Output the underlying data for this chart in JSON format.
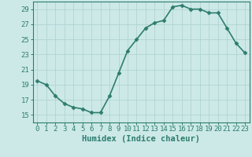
{
  "x": [
    0,
    1,
    2,
    3,
    4,
    5,
    6,
    7,
    8,
    9,
    10,
    11,
    12,
    13,
    14,
    15,
    16,
    17,
    18,
    19,
    20,
    21,
    22,
    23
  ],
  "y": [
    19.5,
    19.0,
    17.5,
    16.5,
    16.0,
    15.8,
    15.3,
    15.3,
    17.5,
    20.5,
    23.5,
    25.0,
    26.5,
    27.2,
    27.5,
    29.3,
    29.5,
    29.0,
    29.0,
    28.5,
    28.5,
    26.5,
    24.5,
    23.2
  ],
  "line_color": "#2e7d6e",
  "bg_color": "#cce9e8",
  "grid_color": "#b0d4d2",
  "xlabel": "Humidex (Indice chaleur)",
  "ylim": [
    14,
    30
  ],
  "yticks": [
    15,
    17,
    19,
    21,
    23,
    25,
    27,
    29
  ],
  "xlim": [
    -0.5,
    23.5
  ],
  "marker": "D",
  "marker_size": 2.5,
  "line_width": 1.2,
  "font_color": "#2e7d6e",
  "font_size": 6.5,
  "xlabel_fontsize": 7.5
}
